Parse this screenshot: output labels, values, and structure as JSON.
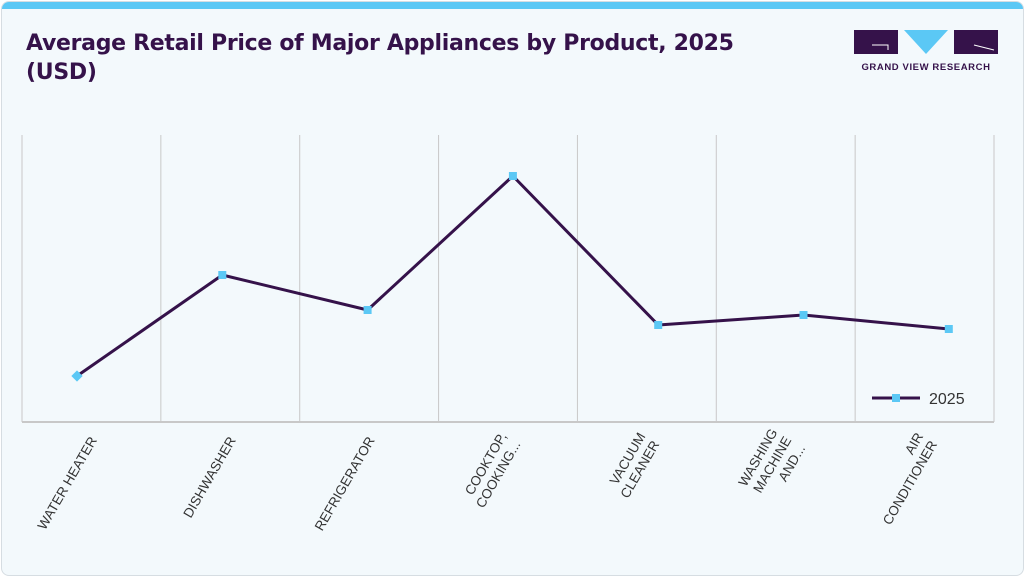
{
  "title": "Average Retail Price of Major Appliances by Product, 2025 (USD)",
  "logo": {
    "text": "GRAND VIEW RESEARCH"
  },
  "colors": {
    "accent": "#5bc8f5",
    "line": "#35124a",
    "marker": "#5bc8f5",
    "grid": "#c8c8c8"
  },
  "chart_data": {
    "type": "line",
    "title": "Average Retail Price of Major Appliances by Product, 2025 (USD)",
    "categories": [
      [
        "WATER HEATER"
      ],
      [
        "DISHWASHER"
      ],
      [
        "REFRIGERATOR"
      ],
      [
        "COOKTOP,",
        "COOKING..."
      ],
      [
        "VACUUM",
        "CLEANER"
      ],
      [
        "WASHING",
        "MACHINE",
        "AND..."
      ],
      [
        "AIR",
        "CONDITIONER"
      ]
    ],
    "series": [
      {
        "name": "2025",
        "values": [
          46,
          147,
          112,
          246,
          97,
          107,
          93
        ]
      }
    ],
    "y_axis_labels_shown": false,
    "grid": "vertical",
    "legend": "bottom-right"
  }
}
